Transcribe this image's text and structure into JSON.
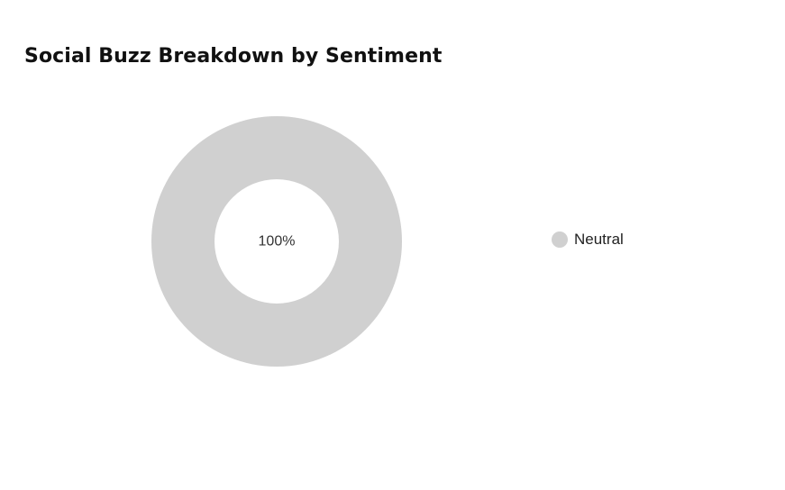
{
  "chart_data": {
    "type": "pie",
    "title": "Social Buzz Breakdown by Sentiment",
    "variant": "donut",
    "categories": [
      "Neutral"
    ],
    "values": [
      100
    ],
    "data_labels": [
      "100%"
    ],
    "colors": [
      "#d0d0d0"
    ],
    "legend": {
      "position": "right",
      "entries": [
        "Neutral"
      ]
    }
  }
}
